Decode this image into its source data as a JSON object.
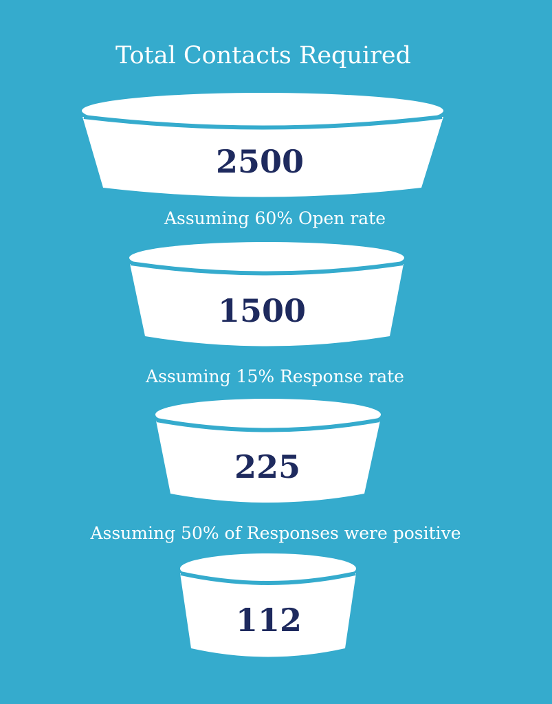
{
  "title": "Total Contacts Required",
  "colors": {
    "background": "#35abcd",
    "bowl": "#ffffff",
    "value_text": "#1e2a5e",
    "label_text": "#ffffff"
  },
  "stages": [
    {
      "value": "2500"
    },
    {
      "value": "1500"
    },
    {
      "value": "225"
    },
    {
      "value": "112"
    }
  ],
  "notes": [
    "Assuming 60% Open rate",
    "Assuming 15% Response rate",
    "Assuming 50% of Responses were positive"
  ]
}
